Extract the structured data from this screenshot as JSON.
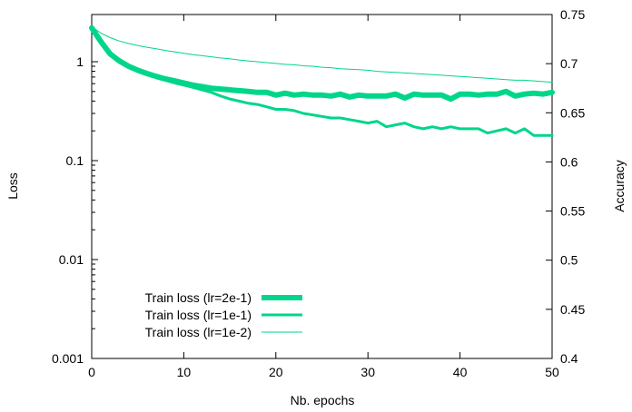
{
  "chart_data": {
    "type": "line",
    "xlabel": "Nb. epochs",
    "ylabel": "Loss",
    "y2label": "Accuracy",
    "xlim": [
      0,
      50
    ],
    "ylim": [
      0.001,
      3
    ],
    "y_scale": "log",
    "y2lim": [
      0.4,
      0.75
    ],
    "x_ticks": [
      0,
      10,
      20,
      30,
      40,
      50
    ],
    "y_ticks": [
      {
        "value": 0.001,
        "label": "0.001"
      },
      {
        "value": 0.01,
        "label": "0.01"
      },
      {
        "value": 0.1,
        "label": "0.1"
      },
      {
        "value": 1,
        "label": "1"
      }
    ],
    "y2_ticks": [
      {
        "value": 0.4,
        "label": "0.4"
      },
      {
        "value": 0.45,
        "label": "0.45"
      },
      {
        "value": 0.5,
        "label": "0.5"
      },
      {
        "value": 0.55,
        "label": "0.55"
      },
      {
        "value": 0.6,
        "label": "0.6"
      },
      {
        "value": 0.65,
        "label": "0.65"
      },
      {
        "value": 0.7,
        "label": "0.7"
      },
      {
        "value": 0.75,
        "label": "0.75"
      }
    ],
    "grid": false,
    "legend_position": "bottom-left",
    "series_color": "#00d68a",
    "series": [
      {
        "name": "Train loss (lr=2e-1)",
        "line_weight": "thick",
        "x": [
          0,
          1,
          2,
          3,
          4,
          5,
          6,
          7,
          8,
          9,
          10,
          11,
          12,
          13,
          14,
          15,
          16,
          17,
          18,
          19,
          20,
          21,
          22,
          23,
          24,
          25,
          26,
          27,
          28,
          29,
          30,
          31,
          32,
          33,
          34,
          35,
          36,
          37,
          38,
          39,
          40,
          41,
          42,
          43,
          44,
          45,
          46,
          47,
          48,
          49,
          50
        ],
        "y": [
          2.2,
          1.6,
          1.2,
          1.02,
          0.9,
          0.82,
          0.76,
          0.71,
          0.67,
          0.64,
          0.61,
          0.58,
          0.56,
          0.54,
          0.53,
          0.52,
          0.51,
          0.5,
          0.49,
          0.49,
          0.46,
          0.48,
          0.46,
          0.47,
          0.46,
          0.46,
          0.45,
          0.47,
          0.44,
          0.46,
          0.45,
          0.45,
          0.45,
          0.47,
          0.43,
          0.47,
          0.46,
          0.46,
          0.46,
          0.42,
          0.47,
          0.47,
          0.46,
          0.47,
          0.47,
          0.5,
          0.45,
          0.47,
          0.48,
          0.47,
          0.49
        ]
      },
      {
        "name": "Train loss (lr=1e-1)",
        "line_weight": "medium",
        "x": [
          0,
          1,
          2,
          3,
          4,
          5,
          6,
          7,
          8,
          9,
          10,
          11,
          12,
          13,
          14,
          15,
          16,
          17,
          18,
          19,
          20,
          21,
          22,
          23,
          24,
          25,
          26,
          27,
          28,
          29,
          30,
          31,
          32,
          33,
          34,
          35,
          36,
          37,
          38,
          39,
          40,
          41,
          42,
          43,
          44,
          45,
          46,
          47,
          48,
          49,
          50
        ],
        "y": [
          2.2,
          1.6,
          1.2,
          1.0,
          0.88,
          0.8,
          0.74,
          0.69,
          0.65,
          0.61,
          0.58,
          0.55,
          0.52,
          0.49,
          0.45,
          0.42,
          0.4,
          0.38,
          0.37,
          0.35,
          0.33,
          0.33,
          0.32,
          0.3,
          0.29,
          0.28,
          0.27,
          0.27,
          0.26,
          0.25,
          0.24,
          0.25,
          0.22,
          0.23,
          0.24,
          0.22,
          0.21,
          0.22,
          0.21,
          0.22,
          0.21,
          0.21,
          0.21,
          0.19,
          0.2,
          0.21,
          0.19,
          0.21,
          0.18,
          0.18,
          0.18
        ]
      },
      {
        "name": "Train loss (lr=1e-2)",
        "line_weight": "thin",
        "x": [
          0,
          1,
          2,
          3,
          4,
          5,
          6,
          7,
          8,
          9,
          10,
          11,
          12,
          13,
          14,
          15,
          16,
          17,
          18,
          19,
          20,
          21,
          22,
          23,
          24,
          25,
          26,
          27,
          28,
          29,
          30,
          31,
          32,
          33,
          34,
          35,
          36,
          37,
          38,
          39,
          40,
          41,
          42,
          43,
          44,
          45,
          46,
          47,
          48,
          49,
          50
        ],
        "y": [
          2.25,
          1.95,
          1.75,
          1.62,
          1.53,
          1.46,
          1.4,
          1.35,
          1.3,
          1.26,
          1.22,
          1.18,
          1.15,
          1.12,
          1.09,
          1.07,
          1.04,
          1.02,
          1.0,
          0.98,
          0.96,
          0.94,
          0.93,
          0.91,
          0.9,
          0.88,
          0.87,
          0.85,
          0.84,
          0.83,
          0.82,
          0.8,
          0.79,
          0.78,
          0.77,
          0.76,
          0.75,
          0.74,
          0.73,
          0.72,
          0.71,
          0.7,
          0.69,
          0.68,
          0.67,
          0.66,
          0.65,
          0.65,
          0.64,
          0.63,
          0.62
        ]
      }
    ]
  }
}
